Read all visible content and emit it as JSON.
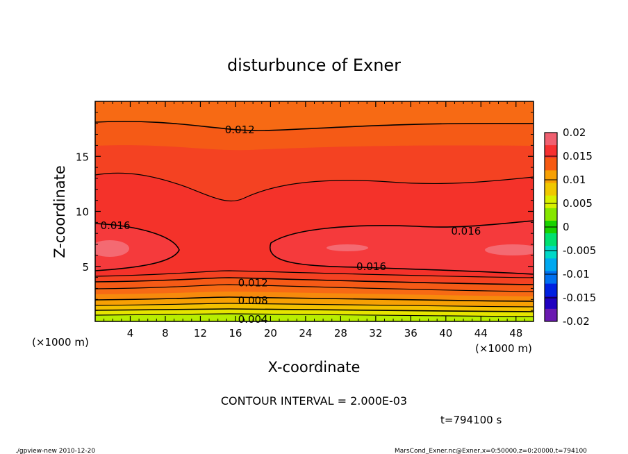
{
  "chart_data": {
    "type": "heatmap",
    "title": "disturbunce of Exner",
    "xlabel": "X-coordinate",
    "ylabel": "Z-coordinate",
    "x_unit_left": "(×1000 m)",
    "x_unit_right": "(×1000 m)",
    "xlim": [
      0,
      50
    ],
    "ylim": [
      0,
      20
    ],
    "x_ticks": [
      4,
      8,
      12,
      16,
      20,
      24,
      28,
      32,
      36,
      40,
      44,
      48
    ],
    "y_ticks": [
      5,
      10,
      15
    ],
    "contour_labels": [
      {
        "text": "0.012",
        "x": 16.5,
        "z": 17.4
      },
      {
        "text": "0.016",
        "x": 2.3,
        "z": 8.7
      },
      {
        "text": "0.016",
        "x": 42.3,
        "z": 8.2
      },
      {
        "text": "0.016",
        "x": 31.5,
        "z": 5.0
      },
      {
        "text": "0.012",
        "x": 18.0,
        "z": 3.5
      },
      {
        "text": "0.008",
        "x": 18.0,
        "z": 1.9
      },
      {
        "text": "0.004",
        "x": 18.0,
        "z": 0.2
      }
    ],
    "colorbar": {
      "ticks": [
        "0.02",
        "0.015",
        "0.01",
        "0.005",
        "0",
        "-0.005",
        "-0.01",
        "-0.015",
        "-0.02"
      ],
      "colors": [
        "#f06070",
        "#f63030",
        "#f65a12",
        "#f7a004",
        "#f0c800",
        "#d8f000",
        "#86e600",
        "#18d200",
        "#00e070",
        "#00d8c8",
        "#00a8f0",
        "#0070f0",
        "#0020e0",
        "#2000c0",
        "#6a1ab0"
      ]
    },
    "contour_interval": "CONTOUR INTERVAL = 2.000E-03",
    "time_label": "t=794100 s",
    "footer_left": "./gpview-new 2010-12-20",
    "footer_right": "MarsCond_Exner.nc@Exner,x=0:50000,z=0:20000,t=794100"
  }
}
